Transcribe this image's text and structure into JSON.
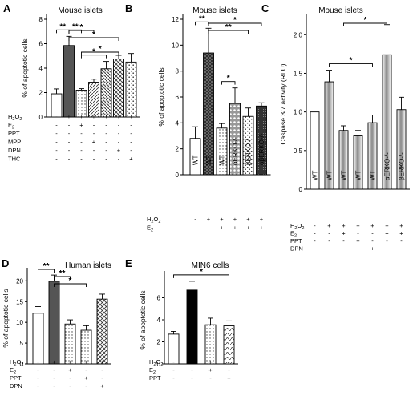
{
  "chart_data": [
    {
      "type": "bar",
      "panel": "A",
      "title": "Mouse islets",
      "ylabel": "% of apoptotic cells",
      "ylim": [
        0,
        8
      ],
      "yticks": [
        0,
        2,
        4,
        6,
        8
      ],
      "bars": [
        {
          "value": 1.9,
          "error": 0.4,
          "fill": "white"
        },
        {
          "value": 5.85,
          "error": 0.75,
          "fill": "dark"
        },
        {
          "value": 2.2,
          "error": 0.12,
          "fill": "dots"
        },
        {
          "value": 2.85,
          "error": 0.25,
          "fill": "diag"
        },
        {
          "value": 3.95,
          "error": 0.6,
          "fill": "hatch"
        },
        {
          "value": 4.75,
          "error": 0.3,
          "fill": "cross"
        },
        {
          "value": 4.5,
          "error": 0.7,
          "fill": "dotgrid"
        }
      ],
      "table": [
        {
          "label": "H2O2",
          "sub": "",
          "pre": "H",
          "mid": "2",
          "post": "O",
          "end": "2",
          "signs": [
            "-",
            "+",
            "+",
            "+",
            "+",
            "+",
            "+"
          ]
        },
        {
          "label": "E2",
          "pre": "E",
          "mid": "2",
          "signs": [
            "-",
            "-",
            "+",
            "-",
            "-",
            "-",
            "-"
          ]
        },
        {
          "label": "PPT",
          "signs": [
            "-",
            "-",
            "-",
            "-",
            "-",
            "-",
            "-"
          ]
        },
        {
          "label": "MPP",
          "signs": [
            "-",
            "-",
            "-",
            "+",
            "-",
            "-",
            "-"
          ]
        },
        {
          "label": "DPN",
          "signs": [
            "-",
            "-",
            "-",
            "-",
            "-",
            "+",
            "-"
          ]
        },
        {
          "label": "THC",
          "signs": [
            "-",
            "-",
            "-",
            "-",
            "-",
            "-",
            "+"
          ]
        }
      ],
      "significance": [
        {
          "from": 0,
          "to": 1,
          "label": "**"
        },
        {
          "from": 1,
          "to": 2,
          "label": "**"
        },
        {
          "from": 1,
          "to": 3,
          "label": "*"
        },
        {
          "from": 1,
          "to": 5,
          "label": "*"
        },
        {
          "from": 2,
          "to": 4,
          "label": "*"
        },
        {
          "from": 2,
          "to": 5,
          "label": "*"
        }
      ]
    },
    {
      "type": "bar",
      "panel": "B",
      "title": "Mouse islets",
      "ylabel": "% of apoptotic cells",
      "ylim": [
        0,
        12
      ],
      "yticks": [
        0,
        2,
        4,
        6,
        8,
        10,
        12
      ],
      "categories": [
        "WT",
        "WT",
        "WT",
        "αERKO-/-",
        "βERKO-/-",
        "αβERKO-/-"
      ],
      "bars": [
        {
          "value": 2.8,
          "error": 0.9,
          "fill": "white"
        },
        {
          "value": 9.4,
          "error": 1.9,
          "fill": "crossdark"
        },
        {
          "value": 3.6,
          "error": 0.35,
          "fill": "dots"
        },
        {
          "value": 5.5,
          "error": 1.2,
          "fill": "spots"
        },
        {
          "value": 4.5,
          "error": 0.65,
          "fill": "dotgrid"
        },
        {
          "value": 5.3,
          "error": 0.25,
          "fill": "darkdots"
        }
      ],
      "table": [
        {
          "label": "H2O2",
          "pre": "H",
          "mid": "2",
          "post": "O",
          "end": "2",
          "signs": [
            "-",
            "+",
            "+",
            "+",
            "+",
            "+"
          ]
        },
        {
          "label": "E2",
          "pre": "E",
          "mid": "2",
          "signs": [
            "-",
            "-",
            "+",
            "+",
            "+",
            "+"
          ]
        }
      ],
      "significance": [
        {
          "from": 0,
          "to": 1,
          "label": "**"
        },
        {
          "from": 1,
          "to": 5,
          "label": "*"
        },
        {
          "from": 1,
          "to": 4,
          "label": "**"
        },
        {
          "from": 2,
          "to": 3,
          "label": "*"
        }
      ]
    },
    {
      "type": "bar",
      "panel": "C",
      "title": "Mouse islets",
      "ylabel": "Caspase 3/7 activity (RLU)",
      "ylim": [
        0,
        2.2
      ],
      "yticks": [
        0,
        0.5,
        1.0,
        1.5,
        2.0
      ],
      "yticklabels": [
        "0",
        "0.5",
        "1.0",
        "1.5",
        "2.0"
      ],
      "categories": [
        "WT",
        "WT",
        "WT",
        "WT",
        "WT",
        "αERKO-/-",
        "βERKO-/-"
      ],
      "bars": [
        {
          "value": 1.0,
          "error": 0.0,
          "fill": "white"
        },
        {
          "value": 1.39,
          "error": 0.15,
          "fill": "vgrad"
        },
        {
          "value": 0.76,
          "error": 0.06,
          "fill": "vgrad"
        },
        {
          "value": 0.69,
          "error": 0.07,
          "fill": "vgrad"
        },
        {
          "value": 0.86,
          "error": 0.1,
          "fill": "vgrad"
        },
        {
          "value": 1.74,
          "error": 0.39,
          "fill": "vgrad"
        },
        {
          "value": 1.03,
          "error": 0.16,
          "fill": "vgrad"
        }
      ],
      "table": [
        {
          "label": "H2O2",
          "pre": "H",
          "mid": "2",
          "post": "O",
          "end": "2",
          "signs": [
            "-",
            "+",
            "+",
            "+",
            "+",
            "+",
            "+"
          ]
        },
        {
          "label": "E2",
          "pre": "E",
          "mid": "2",
          "signs": [
            "-",
            "-",
            "+",
            "-",
            "-",
            "+",
            "+"
          ]
        },
        {
          "label": "PPT",
          "signs": [
            "-",
            "-",
            "-",
            "+",
            "-",
            "-",
            "-"
          ]
        },
        {
          "label": "DPN",
          "signs": [
            "-",
            "-",
            "-",
            "-",
            "+",
            "-",
            "-"
          ]
        }
      ],
      "significance": [
        {
          "from": 1,
          "to": 4,
          "label": "*"
        },
        {
          "from": 2,
          "to": 5,
          "label": "*"
        }
      ]
    },
    {
      "type": "bar",
      "panel": "D",
      "title": "Human islets",
      "ylabel": "% of apoptotic cells",
      "ylim": [
        0,
        22
      ],
      "yticks": [
        0,
        5,
        10,
        15,
        20
      ],
      "bars": [
        {
          "value": 12.2,
          "error": 1.6,
          "fill": "white"
        },
        {
          "value": 19.9,
          "error": 1.5,
          "fill": "dark"
        },
        {
          "value": 9.6,
          "error": 1.0,
          "fill": "dots"
        },
        {
          "value": 8.1,
          "error": 1.1,
          "fill": "dots"
        },
        {
          "value": 15.6,
          "error": 1.2,
          "fill": "cross"
        }
      ],
      "table": [
        {
          "label": "H2O2",
          "pre": "H",
          "mid": "2",
          "post": "O",
          "end": "2",
          "signs": [
            "-",
            "+",
            "+",
            "+",
            "+"
          ]
        },
        {
          "label": "E2",
          "pre": "E",
          "mid": "2",
          "signs": [
            "-",
            "-",
            "+",
            "-",
            "-"
          ]
        },
        {
          "label": "PPT",
          "signs": [
            "-",
            "-",
            "-",
            "+",
            "-"
          ]
        },
        {
          "label": "DPN",
          "signs": [
            "-",
            "-",
            "-",
            "-",
            "+"
          ]
        }
      ],
      "significance": [
        {
          "from": 0,
          "to": 1,
          "label": "**"
        },
        {
          "from": 1,
          "to": 2,
          "label": "**"
        },
        {
          "from": 1,
          "to": 3,
          "label": "*"
        }
      ]
    },
    {
      "type": "bar",
      "panel": "E",
      "title": "MIN6 cells",
      "ylabel": "% of apoptotic cells",
      "ylim": [
        0,
        8
      ],
      "yticks": [
        0,
        2,
        4,
        6
      ],
      "bars": [
        {
          "value": 2.7,
          "error": 0.25,
          "fill": "white"
        },
        {
          "value": 6.7,
          "error": 0.8,
          "fill": "black"
        },
        {
          "value": 3.55,
          "error": 0.6,
          "fill": "dots"
        },
        {
          "value": 3.45,
          "error": 0.45,
          "fill": "waves"
        }
      ],
      "table": [
        {
          "label": "H2O2",
          "pre": "H",
          "mid": "2",
          "post": "O",
          "end": "2",
          "signs": [
            "-",
            "+",
            "+",
            "+"
          ]
        },
        {
          "label": "E2",
          "pre": "E",
          "mid": "2",
          "signs": [
            "-",
            "-",
            "+",
            "-"
          ]
        },
        {
          "label": "PPT",
          "signs": [
            "-",
            "-",
            "-",
            "+"
          ]
        }
      ],
      "significance": [
        {
          "from": 0,
          "to": 3,
          "label": "*"
        }
      ]
    }
  ]
}
